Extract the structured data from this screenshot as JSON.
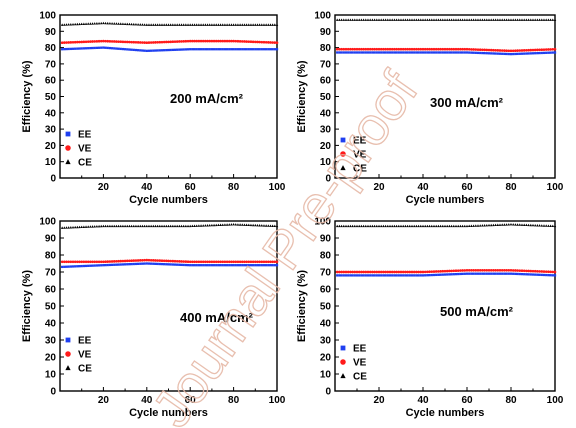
{
  "watermark": "Journal Pre-proof",
  "colors": {
    "EE": "#1f3ff0",
    "VE": "#ff1a1a",
    "CE": "#000000",
    "axis": "#000000",
    "watermark": "#e6b9a7"
  },
  "chart_data": [
    {
      "type": "scatter",
      "annotation": "200 mA/cm²",
      "xlabel": "Cycle numbers",
      "ylabel": "Efficiency (%)",
      "xlim": [
        0,
        100
      ],
      "ylim": [
        0,
        100
      ],
      "xticks": [
        20,
        40,
        60,
        80,
        100
      ],
      "yticks": [
        0,
        10,
        20,
        30,
        40,
        50,
        60,
        70,
        80,
        90,
        100
      ],
      "legend_position": "bottom-left",
      "cycles": [
        1,
        100
      ],
      "series": [
        {
          "name": "EE",
          "marker": "square",
          "segments": [
            [
              1,
              79
            ],
            [
              20,
              80
            ],
            [
              40,
              78
            ],
            [
              60,
              79
            ],
            [
              80,
              79
            ],
            [
              100,
              79
            ]
          ]
        },
        {
          "name": "VE",
          "marker": "circle",
          "segments": [
            [
              1,
              83
            ],
            [
              20,
              84
            ],
            [
              40,
              83
            ],
            [
              60,
              84
            ],
            [
              80,
              84
            ],
            [
              100,
              83
            ]
          ]
        },
        {
          "name": "CE",
          "marker": "triangle",
          "segments": [
            [
              1,
              94
            ],
            [
              20,
              95
            ],
            [
              40,
              94
            ],
            [
              60,
              94
            ],
            [
              80,
              94
            ],
            [
              100,
              94
            ]
          ]
        }
      ]
    },
    {
      "type": "scatter",
      "annotation": "300 mA/cm²",
      "xlabel": "Cycle numbers",
      "ylabel": "Efficiency (%)",
      "xlim": [
        0,
        100
      ],
      "ylim": [
        0,
        100
      ],
      "xticks": [
        20,
        40,
        60,
        80,
        100
      ],
      "yticks": [
        0,
        10,
        20,
        30,
        40,
        50,
        60,
        70,
        80,
        90,
        100
      ],
      "legend_position": "bottom-left",
      "cycles": [
        1,
        100
      ],
      "series": [
        {
          "name": "EE",
          "marker": "square",
          "segments": [
            [
              1,
              77
            ],
            [
              20,
              77
            ],
            [
              40,
              77
            ],
            [
              60,
              77
            ],
            [
              80,
              76
            ],
            [
              100,
              77
            ]
          ]
        },
        {
          "name": "VE",
          "marker": "circle",
          "segments": [
            [
              1,
              79
            ],
            [
              20,
              79
            ],
            [
              40,
              79
            ],
            [
              60,
              79
            ],
            [
              80,
              78
            ],
            [
              100,
              79
            ]
          ]
        },
        {
          "name": "CE",
          "marker": "triangle",
          "segments": [
            [
              1,
              97
            ],
            [
              20,
              97
            ],
            [
              40,
              97
            ],
            [
              60,
              97
            ],
            [
              80,
              97
            ],
            [
              100,
              97
            ]
          ]
        }
      ]
    },
    {
      "type": "scatter",
      "annotation": "400 mA/cm²",
      "xlabel": "Cycle numbers",
      "ylabel": "Efficiency (%)",
      "xlim": [
        0,
        100
      ],
      "ylim": [
        0,
        100
      ],
      "xticks": [
        20,
        40,
        60,
        80,
        100
      ],
      "yticks": [
        0,
        10,
        20,
        30,
        40,
        50,
        60,
        70,
        80,
        90,
        100
      ],
      "legend_position": "bottom-left",
      "cycles": [
        1,
        100
      ],
      "series": [
        {
          "name": "EE",
          "marker": "square",
          "segments": [
            [
              1,
              73
            ],
            [
              20,
              74
            ],
            [
              40,
              75
            ],
            [
              60,
              74
            ],
            [
              80,
              74
            ],
            [
              100,
              74
            ]
          ]
        },
        {
          "name": "VE",
          "marker": "circle",
          "segments": [
            [
              1,
              76
            ],
            [
              20,
              76
            ],
            [
              40,
              77
            ],
            [
              60,
              76
            ],
            [
              80,
              76
            ],
            [
              100,
              76
            ]
          ]
        },
        {
          "name": "CE",
          "marker": "triangle",
          "segments": [
            [
              1,
              96
            ],
            [
              20,
              97
            ],
            [
              40,
              97
            ],
            [
              60,
              97
            ],
            [
              80,
              98
            ],
            [
              100,
              97
            ]
          ]
        }
      ]
    },
    {
      "type": "scatter",
      "annotation": "500 mA/cm²",
      "xlabel": "Cycle numbers",
      "ylabel": "Efficiency (%)",
      "xlim": [
        0,
        100
      ],
      "ylim": [
        0,
        100
      ],
      "xticks": [
        20,
        40,
        60,
        80,
        100
      ],
      "yticks": [
        0,
        10,
        20,
        30,
        40,
        50,
        60,
        70,
        80,
        90,
        100
      ],
      "legend_position": "bottom-left",
      "cycles": [
        1,
        100
      ],
      "series": [
        {
          "name": "EE",
          "marker": "square",
          "segments": [
            [
              1,
              68
            ],
            [
              20,
              68
            ],
            [
              40,
              68
            ],
            [
              60,
              69
            ],
            [
              80,
              69
            ],
            [
              100,
              68
            ]
          ]
        },
        {
          "name": "VE",
          "marker": "circle",
          "segments": [
            [
              1,
              70
            ],
            [
              20,
              70
            ],
            [
              40,
              70
            ],
            [
              60,
              71
            ],
            [
              80,
              71
            ],
            [
              100,
              70
            ]
          ]
        },
        {
          "name": "CE",
          "marker": "triangle",
          "segments": [
            [
              1,
              97
            ],
            [
              20,
              97
            ],
            [
              40,
              97
            ],
            [
              60,
              97
            ],
            [
              80,
              98
            ],
            [
              100,
              97
            ]
          ]
        }
      ]
    }
  ]
}
